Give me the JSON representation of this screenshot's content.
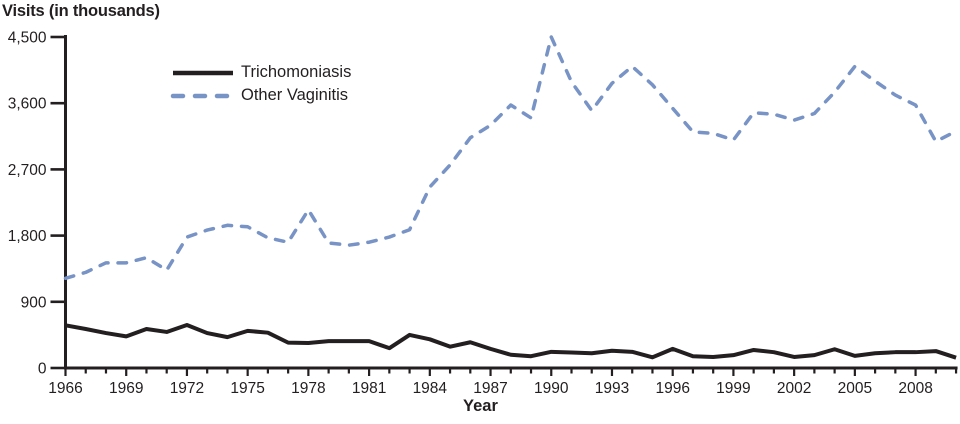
{
  "chart_data": {
    "type": "line",
    "title": "Visits (in thousands)",
    "xlabel": "Year",
    "ylabel": "Visits (in thousands)",
    "grid": false,
    "legend_position": "top-left-inside",
    "axis_color": "#231f20",
    "xlim": [
      1966,
      2010
    ],
    "ylim": [
      0,
      4500
    ],
    "x": [
      1966,
      1967,
      1968,
      1969,
      1970,
      1971,
      1972,
      1973,
      1974,
      1975,
      1976,
      1977,
      1978,
      1979,
      1980,
      1981,
      1982,
      1983,
      1984,
      1985,
      1986,
      1987,
      1988,
      1989,
      1990,
      1991,
      1992,
      1993,
      1994,
      1995,
      1996,
      1997,
      1998,
      1999,
      2000,
      2001,
      2002,
      2003,
      2004,
      2005,
      2006,
      2007,
      2008,
      2009,
      2010
    ],
    "x_tick_years": [
      1966,
      1969,
      1972,
      1975,
      1978,
      1981,
      1984,
      1987,
      1990,
      1993,
      1996,
      1999,
      2002,
      2005,
      2008
    ],
    "y_ticks": [
      {
        "value": 0,
        "label": "0"
      },
      {
        "value": 900,
        "label": "900"
      },
      {
        "value": 1800,
        "label": "1,800"
      },
      {
        "value": 2700,
        "label": "2,700"
      },
      {
        "value": 3600,
        "label": "3,600"
      },
      {
        "value": 4500,
        "label": "4,500"
      }
    ],
    "series": [
      {
        "name": "Trichomoniasis",
        "style": "solid",
        "color": "#231f20",
        "values": [
          580,
          530,
          475,
          430,
          530,
          490,
          585,
          475,
          420,
          505,
          480,
          345,
          340,
          365,
          365,
          365,
          270,
          450,
          390,
          290,
          350,
          260,
          180,
          160,
          220,
          210,
          200,
          235,
          220,
          145,
          260,
          160,
          150,
          175,
          245,
          215,
          150,
          175,
          255,
          165,
          200,
          215,
          215,
          230,
          140
        ]
      },
      {
        "name": "Other Vaginitis",
        "style": "dashed",
        "color": "#7893c5",
        "values": [
          1220,
          1300,
          1430,
          1430,
          1500,
          1330,
          1780,
          1875,
          1940,
          1920,
          1770,
          1710,
          2150,
          1700,
          1670,
          1710,
          1780,
          1880,
          2460,
          2760,
          3130,
          3300,
          3575,
          3400,
          4500,
          3890,
          3500,
          3870,
          4100,
          3850,
          3530,
          3210,
          3190,
          3100,
          3470,
          3450,
          3370,
          3460,
          3750,
          4100,
          3900,
          3710,
          3575,
          3080,
          3220
        ]
      }
    ]
  }
}
